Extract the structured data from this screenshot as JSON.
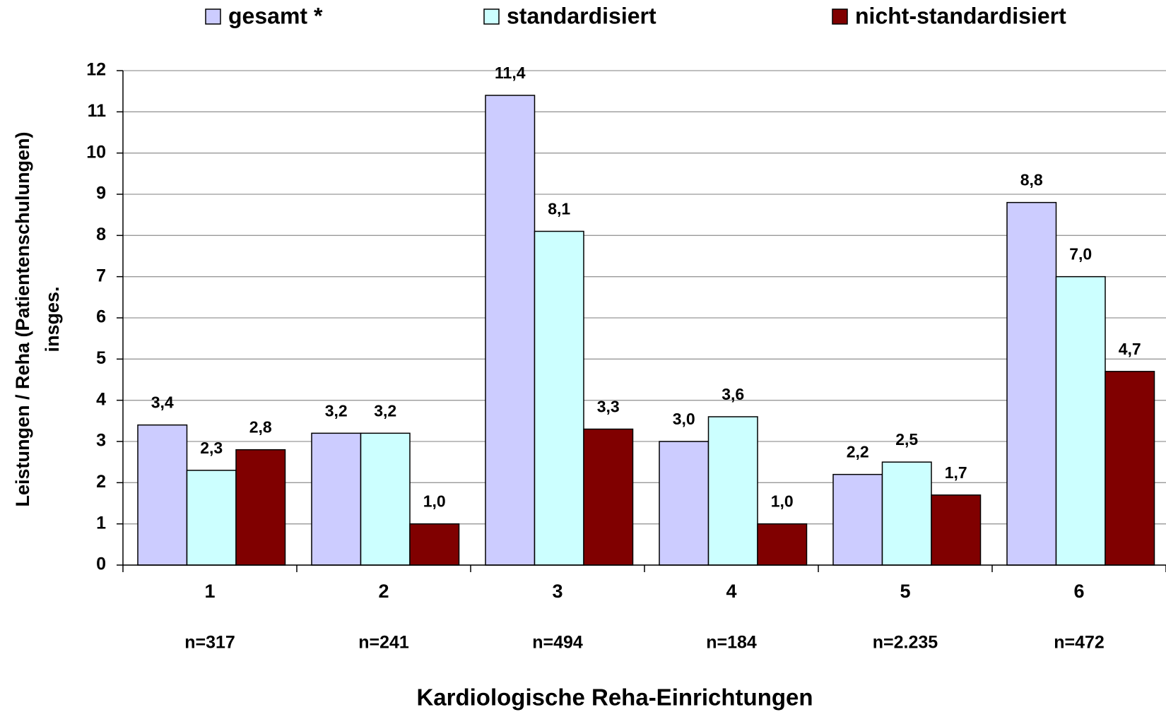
{
  "chart_data": {
    "type": "bar",
    "categories": [
      "1",
      "2",
      "3",
      "4",
      "5",
      "6"
    ],
    "n_labels": [
      "n=317",
      "n=241",
      "n=494",
      "n=184",
      "n=2.235",
      "n=472"
    ],
    "xlabel": "Kardiologische Reha-Einrichtungen",
    "ylabel": [
      "Leistungen / Reha (Patientenschulungen)",
      "insges."
    ],
    "ylim": [
      0,
      12
    ],
    "yticks": [
      0,
      1,
      2,
      3,
      4,
      5,
      6,
      7,
      8,
      9,
      10,
      11,
      12
    ],
    "grid": true,
    "legend": "top",
    "series": [
      {
        "name": "gesamt *",
        "color": "#ccccff",
        "values": [
          3.4,
          3.2,
          11.4,
          3.0,
          2.2,
          8.8
        ],
        "value_labels": [
          "3,4",
          "3,2",
          "11,4",
          "3,0",
          "2,2",
          "8,8"
        ]
      },
      {
        "name": "standardisiert",
        "color": "#ccffff",
        "values": [
          2.3,
          3.2,
          8.1,
          3.6,
          2.5,
          7.0
        ],
        "value_labels": [
          "2,3",
          "3,2",
          "8,1",
          "3,6",
          "2,5",
          "7,0"
        ]
      },
      {
        "name": "nicht-standardisiert",
        "color": "#800000",
        "values": [
          2.8,
          1.0,
          3.3,
          1.0,
          1.7,
          4.7
        ],
        "value_labels": [
          "2,8",
          "1,0",
          "3,3",
          "1,0",
          "1,7",
          "4,7"
        ]
      }
    ]
  }
}
